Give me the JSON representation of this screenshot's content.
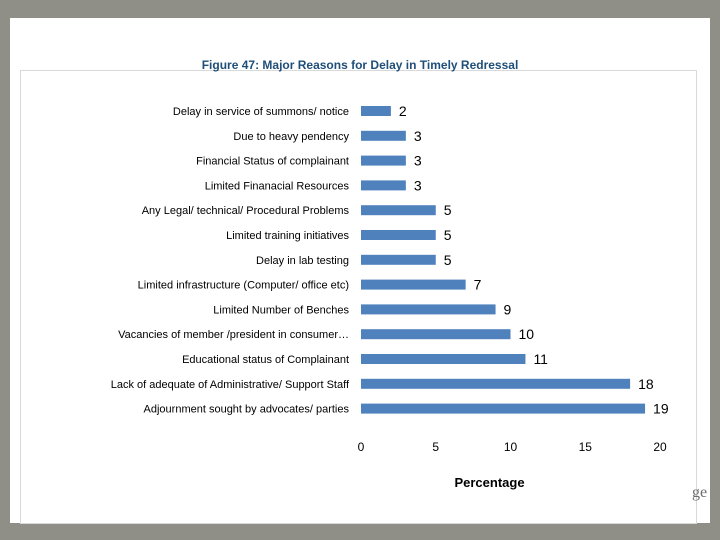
{
  "chart_data": {
    "type": "bar",
    "orientation": "horizontal",
    "title": "Figure 47: Major Reasons for Delay in Timely Redressal",
    "xlabel": "Percentage",
    "ylabel": "",
    "xlim": [
      0,
      20
    ],
    "xticks": [
      0,
      5,
      10,
      15,
      20
    ],
    "grid": false,
    "bar_color": "#4f81bd",
    "categories": [
      "Delay in service of summons/ notice",
      "Due to heavy pendency",
      "Financial Status of complainant",
      "Limited Finanacial Resources",
      "Any Legal/ technical/ Procedural Problems",
      "Limited training  initiatives",
      "Delay in lab testing",
      "Limited infrastructure (Computer/ office etc)",
      "Limited Number of Benches",
      "Vacancies of member /president in consumer…",
      "Educational status of Complainant",
      "Lack of adequate of Administrative/ Support Staff",
      "Adjournment  sought by advocates/ parties"
    ],
    "values": [
      2,
      3,
      3,
      3,
      5,
      5,
      5,
      7,
      9,
      10,
      11,
      18,
      19
    ]
  },
  "edge_text": "ge"
}
